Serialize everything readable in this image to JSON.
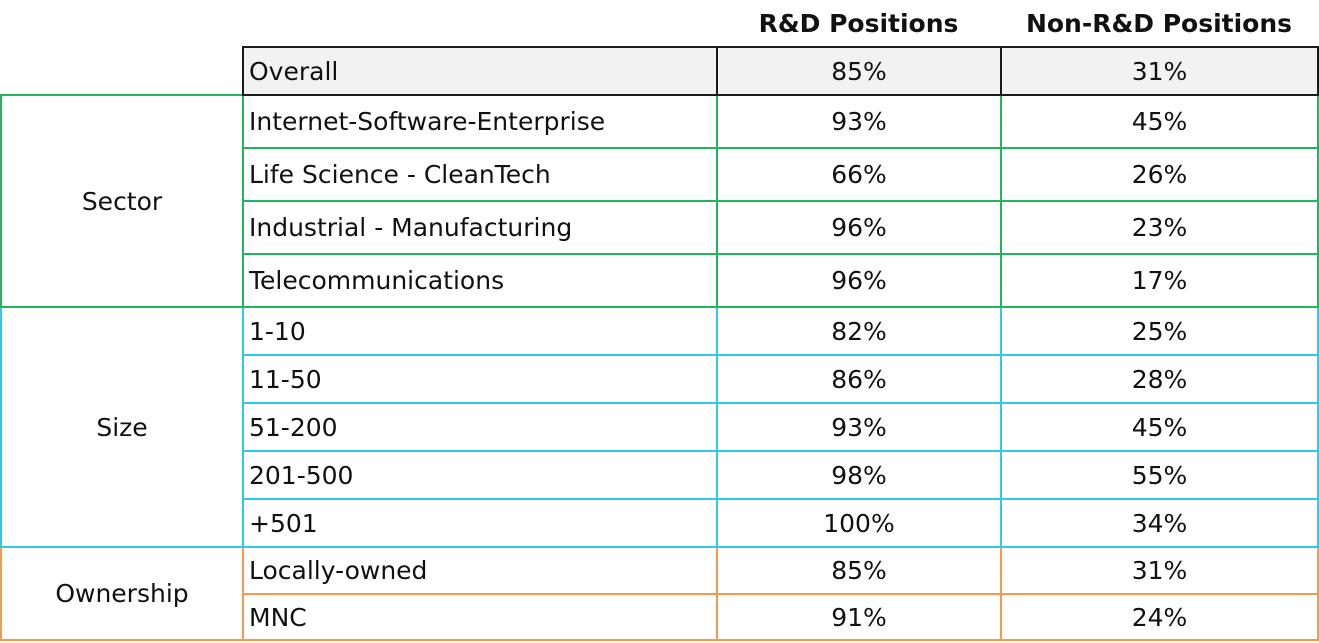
{
  "headers": {
    "rd": "R&D Positions",
    "non_rd": "Non-R&D Positions"
  },
  "overall": {
    "label": "Overall",
    "rd": "85%",
    "non_rd": "31%"
  },
  "sector": {
    "title": "Sector",
    "color": "#1fb65c",
    "rows": [
      {
        "label": "Internet-Software-Enterprise",
        "rd": "93%",
        "non_rd": "45%"
      },
      {
        "label": "Life Science - CleanTech",
        "rd": "66%",
        "non_rd": "26%"
      },
      {
        "label": "Industrial - Manufacturing",
        "rd": "96%",
        "non_rd": "23%"
      },
      {
        "label": "Telecommunications",
        "rd": "96%",
        "non_rd": "17%"
      }
    ]
  },
  "size": {
    "title": "Size",
    "color": "#2ec9f0",
    "rows": [
      {
        "label": "1-10",
        "rd": "82%",
        "non_rd": "25%"
      },
      {
        "label": "11-50",
        "rd": "86%",
        "non_rd": "28%"
      },
      {
        "label": "51-200",
        "rd": "93%",
        "non_rd": "45%"
      },
      {
        "label": "201-500",
        "rd": "98%",
        "non_rd": "55%"
      },
      {
        "label": "+501",
        "rd": "100%",
        "non_rd": "34%"
      }
    ]
  },
  "ownership": {
    "title": "Ownership",
    "color": "#f29a4f",
    "rows": [
      {
        "label": "Locally-owned",
        "rd": "85%",
        "non_rd": "31%"
      },
      {
        "label": "MNC",
        "rd": "91%",
        "non_rd": "24%"
      }
    ]
  }
}
